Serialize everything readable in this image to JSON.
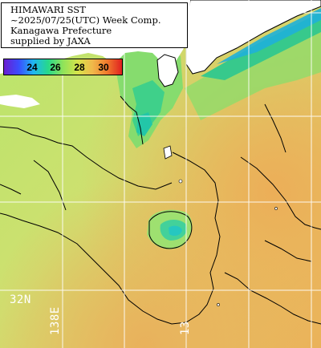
{
  "title": {
    "line1": "HIMAWARI SST",
    "line2": "~2025/07/25(UTC) Week Comp.",
    "line3": "Kanagawa Prefecture",
    "line4": "supplied by JAXA"
  },
  "legend": {
    "ticks": [
      "24",
      "26",
      "28",
      "30"
    ],
    "colors": [
      "#6a1fd0",
      "#3a4dff",
      "#1fb7f0",
      "#27d98a",
      "#8fe35a",
      "#d6e34a",
      "#f0b84a",
      "#f07a2c",
      "#e02020"
    ]
  },
  "graticule": {
    "lat_label": "32N",
    "lon_label": "138E",
    "lon_label_2": "13"
  },
  "colors": {
    "land": "#ffffff",
    "cool_water": "#2ecf9a",
    "mid_water": "#9fe06a",
    "warm_water": "#e8b45a",
    "grid": "#ffffff"
  }
}
